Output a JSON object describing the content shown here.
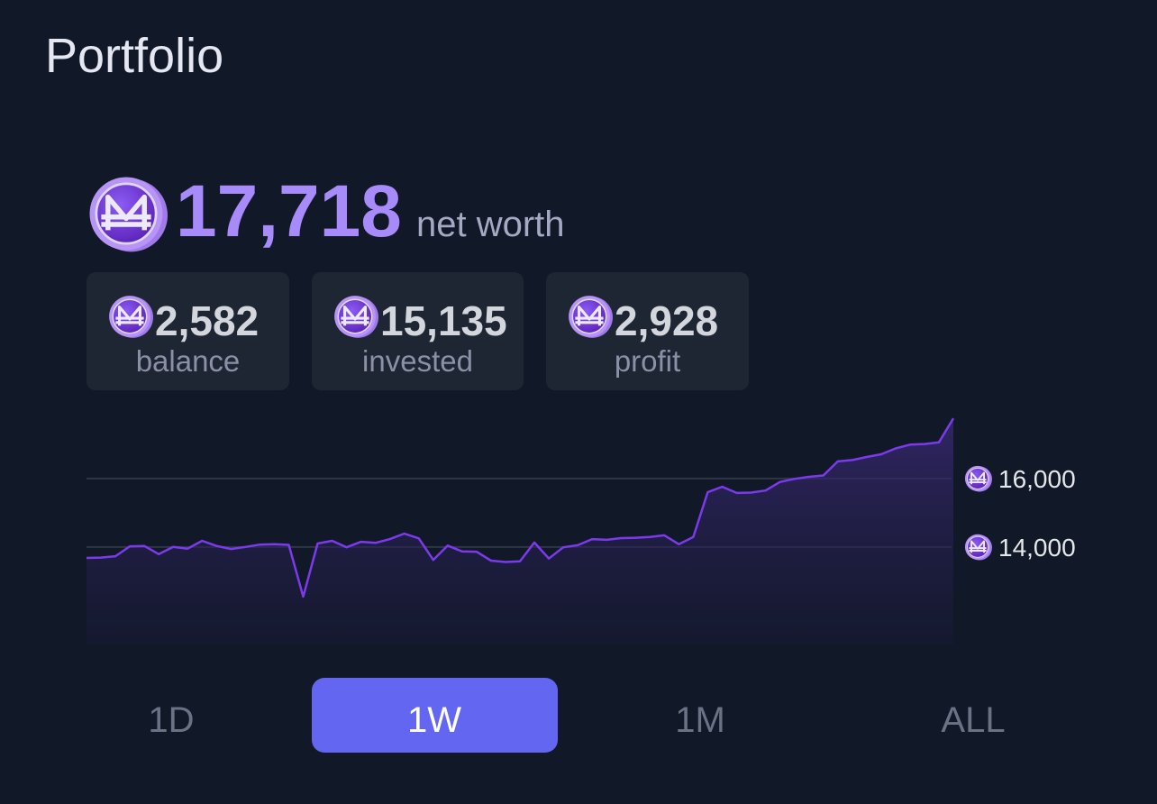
{
  "header": {
    "title": "Portfolio"
  },
  "summary": {
    "net_worth": "17,718",
    "net_worth_label": "net worth"
  },
  "stats": [
    {
      "value": "2,582",
      "label": "balance"
    },
    {
      "value": "15,135",
      "label": "invested"
    },
    {
      "value": "2,928",
      "label": "profit"
    }
  ],
  "chart_data": {
    "type": "line",
    "color": "#7c3aed",
    "values": [
      13680,
      13690,
      13730,
      14020,
      14030,
      13790,
      14000,
      13950,
      14180,
      14030,
      13940,
      14000,
      14070,
      14080,
      14060,
      12550,
      14100,
      14180,
      13990,
      14150,
      14120,
      14230,
      14390,
      14250,
      13620,
      14040,
      13870,
      13860,
      13600,
      13560,
      13580,
      14130,
      13660,
      13990,
      14050,
      14230,
      14210,
      14260,
      14270,
      14290,
      14340,
      14080,
      14290,
      15600,
      15760,
      15580,
      15590,
      15650,
      15900,
      15990,
      16050,
      16090,
      16500,
      16540,
      16630,
      16710,
      16880,
      16990,
      17010,
      17060,
      17760
    ],
    "ylim": [
      11150,
      18000
    ],
    "yticks": [
      {
        "value": 16000,
        "label": "16,000"
      },
      {
        "value": 14000,
        "label": "14,000"
      }
    ],
    "grid": true
  },
  "tabs": {
    "items": [
      "1D",
      "1W",
      "1M",
      "ALL"
    ],
    "active": 1
  }
}
